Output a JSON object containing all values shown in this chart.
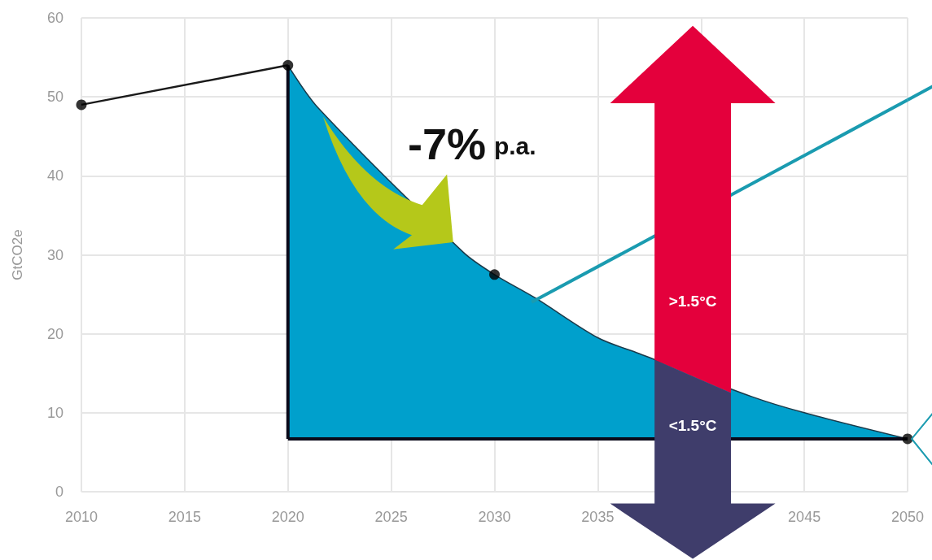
{
  "chart_data": {
    "type": "line",
    "ylabel": "GtCO2e",
    "xlim": [
      2010,
      2050
    ],
    "xticks": [
      2010,
      2015,
      2020,
      2025,
      2030,
      2035,
      {
        "value": 2040,
        "label": null
      },
      2045,
      2050
    ],
    "ylim": [
      0,
      60
    ],
    "yticks": [
      0,
      10,
      20,
      30,
      40,
      50,
      60
    ],
    "grid": true,
    "series": [
      {
        "color": "#1a1a1a",
        "x": [
          2010,
          2020
        ],
        "values": [
          49,
          54
        ]
      },
      {
        "type": "area",
        "color": "#00a0cc",
        "x": [
          2020,
          2021.5,
          2028.5,
          2030,
          2032,
          2035,
          2037,
          2042.5,
          2045,
          2050
        ],
        "values": [
          54,
          48.5,
          30.3,
          27.5,
          24.5,
          19.5,
          17.5,
          12,
          10,
          6.7
        ]
      },
      {
        "type": "line",
        "color": "#0a0a1a",
        "x": [
          2020,
          2020
        ],
        "values": [
          54,
          6.7
        ]
      },
      {
        "type": "line",
        "color": "#0a0a1a",
        "x": [
          2020,
          2050
        ],
        "values": [
          6.7,
          6.7
        ]
      },
      {
        "type": "line",
        "color": "#1a9bb0",
        "x": [
          2031.8,
          2050
        ],
        "values": [
          24,
          49.6
        ]
      },
      {
        "type": "scatter",
        "color": "#000000",
        "x": [
          2010,
          2020,
          2030,
          2050
        ],
        "values": [
          49,
          54,
          27.5,
          6.7
        ]
      }
    ],
    "annotations": [
      "-7% p.a.",
      ">1.5°C",
      "<1.5°C"
    ]
  }
}
